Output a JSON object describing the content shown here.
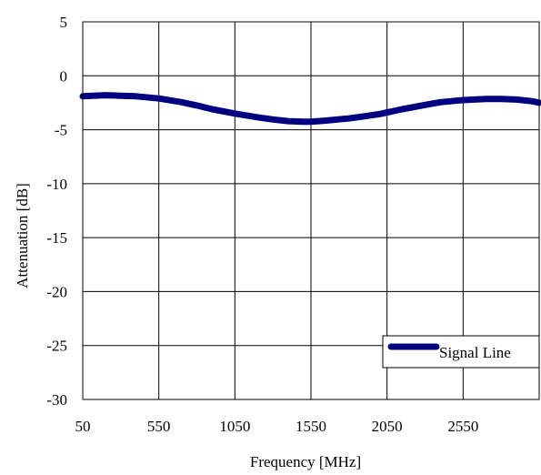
{
  "chart_data": {
    "type": "line",
    "xlabel": "Frequency [MHz]",
    "ylabel": "Attenuation [dB]",
    "xlim": [
      50,
      3050
    ],
    "ylim": [
      -30,
      5
    ],
    "x_ticks": [
      "50",
      "550",
      "1050",
      "1550",
      "2050",
      "2550"
    ],
    "y_ticks": [
      "5",
      "0",
      "-5",
      "-10",
      "-15",
      "-20",
      "-25",
      "-30"
    ],
    "grid": true,
    "legend_position": "bottom-right",
    "line_color": "#000080",
    "series": [
      {
        "name": "Signal Line",
        "x": [
          50,
          200,
          300,
          400,
          550,
          700,
          800,
          900,
          1050,
          1200,
          1300,
          1400,
          1500,
          1550,
          1650,
          1800,
          1900,
          2000,
          2050,
          2150,
          2300,
          2400,
          2550,
          2700,
          2800,
          2900,
          3000,
          3050
        ],
        "y": [
          -1.9,
          -1.8,
          -1.85,
          -1.9,
          -2.1,
          -2.45,
          -2.75,
          -3.1,
          -3.5,
          -3.85,
          -4.05,
          -4.2,
          -4.25,
          -4.25,
          -4.15,
          -3.95,
          -3.75,
          -3.55,
          -3.4,
          -3.1,
          -2.7,
          -2.45,
          -2.25,
          -2.15,
          -2.15,
          -2.2,
          -2.35,
          -2.5
        ]
      }
    ]
  }
}
